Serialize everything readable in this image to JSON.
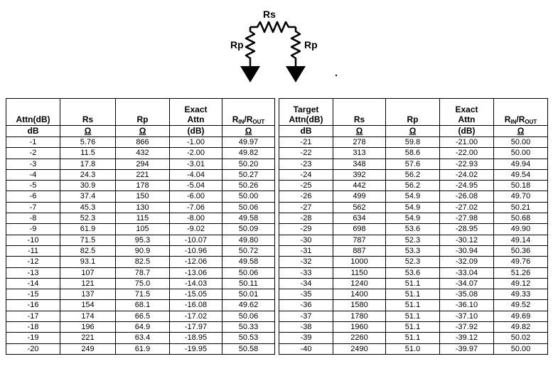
{
  "diagram": {
    "series_label": "Rs",
    "left_shunt_label": "Rp",
    "right_shunt_label": "Rp"
  },
  "left_table": {
    "headers": {
      "attn": "Attn(dB)",
      "rs": "Rs",
      "rp": "Rp",
      "exact_l1": "Exact",
      "exact_l2": "Attn",
      "rin_a": "R",
      "rin_a_sub": "IN",
      "rin_sep": "/R",
      "rin_b_sub": "OUT"
    },
    "units": [
      "dB",
      "Ω",
      "Ω",
      "(dB)",
      "Ω"
    ],
    "rows": [
      [
        "-1",
        "5.76",
        "866",
        "-1.00",
        "49.97"
      ],
      [
        "-2",
        "11.5",
        "432",
        "-2.00",
        "49.82"
      ],
      [
        "-3",
        "17.8",
        "294",
        "-3.01",
        "50.20"
      ],
      [
        "-4",
        "24.3",
        "221",
        "-4.04",
        "50.27"
      ],
      [
        "-5",
        "30.9",
        "178",
        "-5.04",
        "50.26"
      ],
      [
        "-6",
        "37.4",
        "150",
        "-6.00",
        "50.00"
      ],
      [
        "-7",
        "45.3",
        "130",
        "-7.06",
        "50.06"
      ],
      [
        "-8",
        "52.3",
        "115",
        "-8.00",
        "49.58"
      ],
      [
        "-9",
        "61.9",
        "105",
        "-9.02",
        "50.09"
      ],
      [
        "-10",
        "71.5",
        "95.3",
        "-10.07",
        "49.80"
      ],
      [
        "-11",
        "82.5",
        "90.9",
        "-10.96",
        "50.72"
      ],
      [
        "-12",
        "93.1",
        "82.5",
        "-12.06",
        "49.58"
      ],
      [
        "-13",
        "107",
        "78.7",
        "-13.06",
        "50.06"
      ],
      [
        "-14",
        "121",
        "75.0",
        "-14.03",
        "50.11"
      ],
      [
        "-15",
        "137",
        "71.5",
        "-15.05",
        "50.01"
      ],
      [
        "-16",
        "154",
        "68.1",
        "-16.08",
        "49.62"
      ],
      [
        "-17",
        "174",
        "66.5",
        "-17.02",
        "50.06"
      ],
      [
        "-18",
        "196",
        "64.9",
        "-17.97",
        "50.33"
      ],
      [
        "-19",
        "221",
        "63.4",
        "-18.95",
        "50.53"
      ],
      [
        "-20",
        "249",
        "61.9",
        "-19.95",
        "50.58"
      ]
    ]
  },
  "right_table": {
    "headers": {
      "attn_l1": "Target",
      "attn_l2": "Attn(dB)",
      "rs": "Rs",
      "rp": "Rp",
      "exact_l1": "Exact",
      "exact_l2": "Attn",
      "rin_a": "R",
      "rin_a_sub": "IN",
      "rin_sep": "/R",
      "rin_b_sub": "OUT"
    },
    "units": [
      "dB",
      "Ω",
      "Ω",
      "(dB)",
      "Ω"
    ],
    "rows": [
      [
        "-21",
        "278",
        "59.8",
        "-21.00",
        "50.00"
      ],
      [
        "-22",
        "313",
        "58.6",
        "-22.00",
        "50.00"
      ],
      [
        "-23",
        "348",
        "57.6",
        "-22.93",
        "49.94"
      ],
      [
        "-24",
        "392",
        "56.2",
        "-24.02",
        "49.54"
      ],
      [
        "-25",
        "442",
        "56.2",
        "-24.95",
        "50.18"
      ],
      [
        "-26",
        "499",
        "54.9",
        "-26.08",
        "49.70"
      ],
      [
        "-27",
        "562",
        "54.9",
        "-27.02",
        "50.21"
      ],
      [
        "-28",
        "634",
        "54.9",
        "-27.98",
        "50.68"
      ],
      [
        "-29",
        "698",
        "53.6",
        "-28.95",
        "49.90"
      ],
      [
        "-30",
        "787",
        "52.3",
        "-30.12",
        "49.14"
      ],
      [
        "-31",
        "887",
        "53.3",
        "-30.94",
        "50.36"
      ],
      [
        "-32",
        "1000",
        "52.3",
        "-32.09",
        "49.76"
      ],
      [
        "-33",
        "1150",
        "53.6",
        "-33.04",
        "51.26"
      ],
      [
        "-34",
        "1240",
        "51.1",
        "-34.07",
        "49.12"
      ],
      [
        "-35",
        "1400",
        "51.1",
        "-35.08",
        "49.33"
      ],
      [
        "-36",
        "1580",
        "51.1",
        "-36.10",
        "49.52"
      ],
      [
        "-37",
        "1780",
        "51.1",
        "-37.10",
        "49.69"
      ],
      [
        "-38",
        "1960",
        "51.1",
        "-37.92",
        "49.82"
      ],
      [
        "-39",
        "2260",
        "51.1",
        "-39.12",
        "50.02"
      ],
      [
        "-40",
        "2490",
        "51.0",
        "-39.97",
        "50.00"
      ]
    ]
  }
}
